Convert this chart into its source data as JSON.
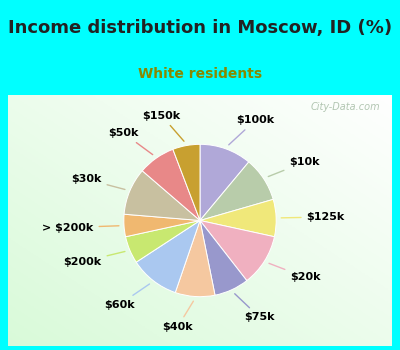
{
  "title": "Income distribution in Moscow, ID (%)",
  "subtitle": "White residents",
  "watermark": "© City-Data.com",
  "background_cyan": "#00FFFF",
  "slices": [
    {
      "label": "$100k",
      "value": 10.5,
      "color": "#b0a8d8"
    },
    {
      "label": "$10k",
      "value": 9.0,
      "color": "#b8ccaa"
    },
    {
      "label": "$125k",
      "value": 7.5,
      "color": "#f0e87a"
    },
    {
      "label": "$20k",
      "value": 10.5,
      "color": "#f0b0c0"
    },
    {
      "label": "$75k",
      "value": 7.0,
      "color": "#9898cc"
    },
    {
      "label": "$40k",
      "value": 8.0,
      "color": "#f5c8a0"
    },
    {
      "label": "$60k",
      "value": 10.0,
      "color": "#aac8f0"
    },
    {
      "label": "$200k",
      "value": 5.5,
      "color": "#c8e870"
    },
    {
      "label": "> $200k",
      "value": 4.5,
      "color": "#f0b870"
    },
    {
      "label": "$30k",
      "value": 9.5,
      "color": "#c8c0a0"
    },
    {
      "label": "$50k",
      "value": 7.5,
      "color": "#e88888"
    },
    {
      "label": "$150k",
      "value": 5.5,
      "color": "#c8a030"
    }
  ],
  "title_fontsize": 13,
  "subtitle_fontsize": 10,
  "label_fontsize": 8
}
